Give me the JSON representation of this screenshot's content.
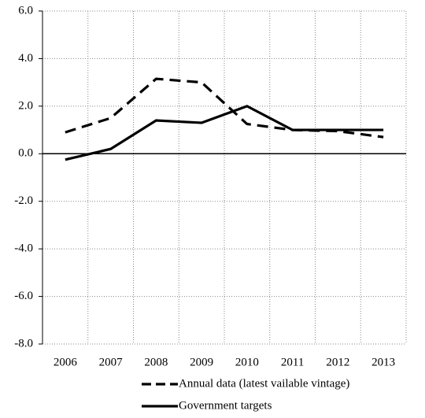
{
  "chart_data": {
    "type": "line",
    "categories": [
      "2006",
      "2007",
      "2008",
      "2009",
      "2010",
      "2011",
      "2012",
      "2013"
    ],
    "series": [
      {
        "name": "Annual data (latest vailable vintage)",
        "color": "#000000",
        "dash": true,
        "values": [
          0.9,
          1.5,
          3.15,
          3.0,
          1.25,
          1.0,
          0.95,
          0.7
        ]
      },
      {
        "name": "Government targets",
        "color": "#000000",
        "dash": false,
        "values": [
          -0.25,
          0.2,
          1.4,
          1.3,
          2.0,
          1.0,
          1.0,
          1.0
        ]
      }
    ],
    "ylim": [
      -8,
      6
    ],
    "yticks": [
      {
        "value": -8,
        "label": "-8.0"
      },
      {
        "value": -6,
        "label": "-6.0"
      },
      {
        "value": -4,
        "label": "-4.0"
      },
      {
        "value": -2,
        "label": "-2.0"
      },
      {
        "value": 0,
        "label": "0.0"
      },
      {
        "value": 2,
        "label": "2.0"
      },
      {
        "value": 4,
        "label": "4.0"
      },
      {
        "value": 6,
        "label": "6.0"
      }
    ],
    "grid": true
  }
}
